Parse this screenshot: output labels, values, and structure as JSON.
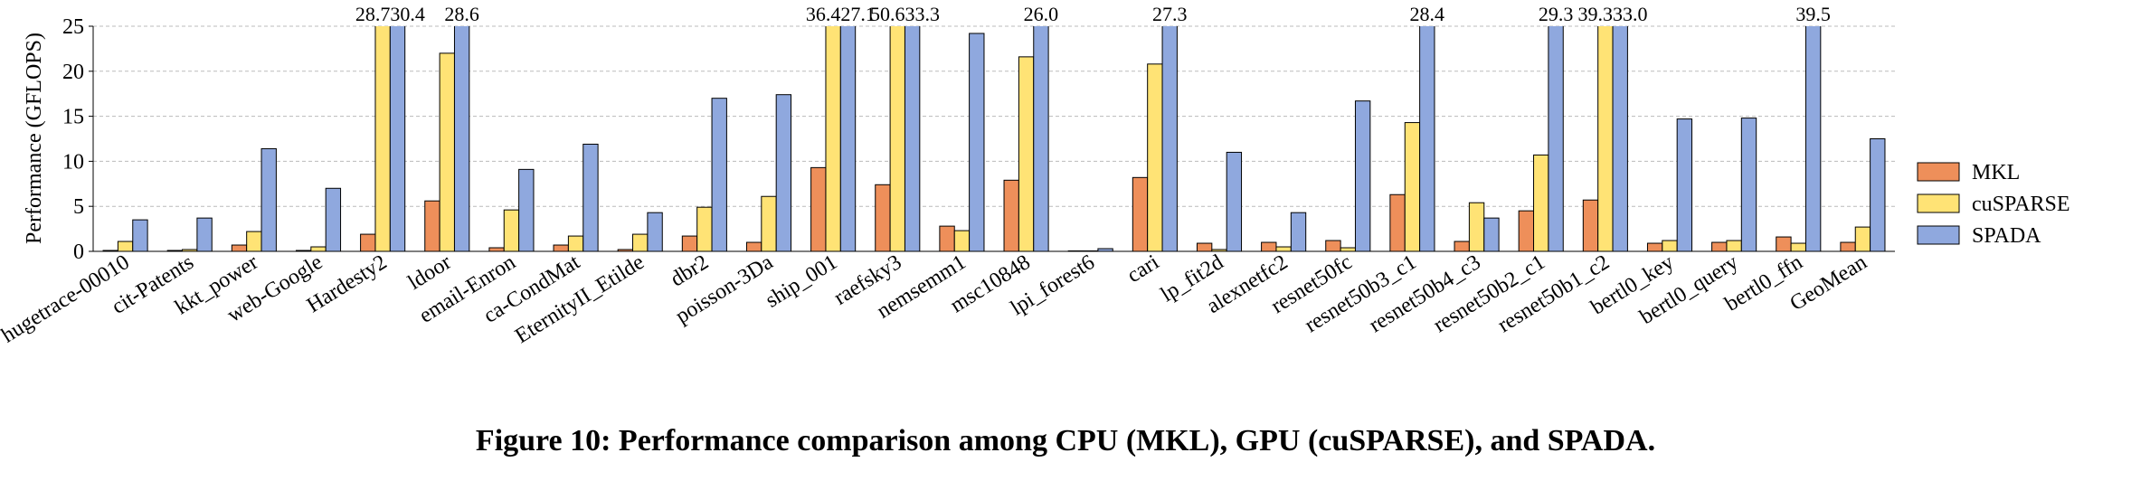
{
  "chart_data": {
    "type": "bar",
    "caption": "Figure 10: Performance comparison among CPU (MKL), GPU (cuSPARSE), and SPADA.",
    "y_label": "Performance (GFLOPS)",
    "categories": [
      "hugetrace-00010",
      "cit-Patents",
      "kkt_power",
      "web-Google",
      "Hardesty2",
      "ldoor",
      "email-Enron",
      "ca-CondMat",
      "EternityII_Etilde",
      "dbr2",
      "poisson-3Da",
      "ship_001",
      "raefsky3",
      "nemsemm1",
      "msc10848",
      "lpi_forest6",
      "cari",
      "lp_fit2d",
      "alexnetfc2",
      "resnet50fc",
      "resnet50b3_c1",
      "resnet50b4_c3",
      "resnet50b2_c1",
      "resnet50b1_c2",
      "bertl0_key",
      "bertl0_query",
      "bertl0_ffn",
      "GeoMean"
    ],
    "series": [
      {
        "name": "MKL",
        "color": "#ee8f5a",
        "values": [
          0.1,
          0.1,
          0.7,
          0.1,
          1.9,
          5.6,
          0.4,
          0.7,
          0.2,
          1.7,
          1.0,
          9.3,
          7.4,
          2.8,
          7.9,
          0.05,
          8.2,
          0.9,
          1.0,
          1.2,
          6.3,
          1.1,
          4.5,
          5.7,
          0.9,
          1.0,
          1.6,
          1.0
        ],
        "value_labels": [
          null,
          null,
          null,
          null,
          null,
          null,
          null,
          null,
          null,
          null,
          null,
          null,
          null,
          null,
          null,
          null,
          null,
          null,
          null,
          null,
          null,
          null,
          null,
          null,
          null,
          null,
          null,
          null
        ]
      },
      {
        "name": "cuSPARSE",
        "color": "#ffe375",
        "values": [
          1.1,
          0.2,
          2.2,
          0.5,
          28.7,
          22.0,
          4.6,
          1.7,
          1.9,
          4.9,
          6.1,
          36.4,
          50.6,
          2.3,
          21.6,
          0.05,
          20.8,
          0.2,
          0.5,
          0.4,
          14.3,
          5.4,
          10.7,
          39.3,
          1.2,
          1.2,
          0.9,
          2.7
        ],
        "value_labels": [
          null,
          null,
          null,
          null,
          "28.7",
          null,
          null,
          null,
          null,
          null,
          null,
          "36.4",
          "50.6",
          null,
          null,
          null,
          null,
          null,
          null,
          null,
          null,
          null,
          null,
          "39.3",
          null,
          null,
          null,
          null
        ]
      },
      {
        "name": "SPADA",
        "color": "#8fa8de",
        "values": [
          3.5,
          3.7,
          11.4,
          7.0,
          30.4,
          28.6,
          9.1,
          11.9,
          4.3,
          17.0,
          17.4,
          27.1,
          33.3,
          24.2,
          26.0,
          0.3,
          27.3,
          11.0,
          4.3,
          16.7,
          28.4,
          3.7,
          29.3,
          33.0,
          14.7,
          14.8,
          39.5,
          12.5
        ],
        "value_labels": [
          null,
          null,
          null,
          null,
          "30.4",
          "28.6",
          null,
          null,
          null,
          null,
          null,
          "27.1",
          "33.3",
          null,
          "26.0",
          null,
          "27.3",
          null,
          null,
          null,
          "28.4",
          null,
          "29.3",
          "33.0",
          null,
          null,
          "39.5",
          null
        ]
      }
    ],
    "ylim": [
      0,
      25
    ],
    "yticks": [
      0,
      5,
      10,
      15,
      20,
      25
    ],
    "grid": true,
    "legend": "right"
  }
}
